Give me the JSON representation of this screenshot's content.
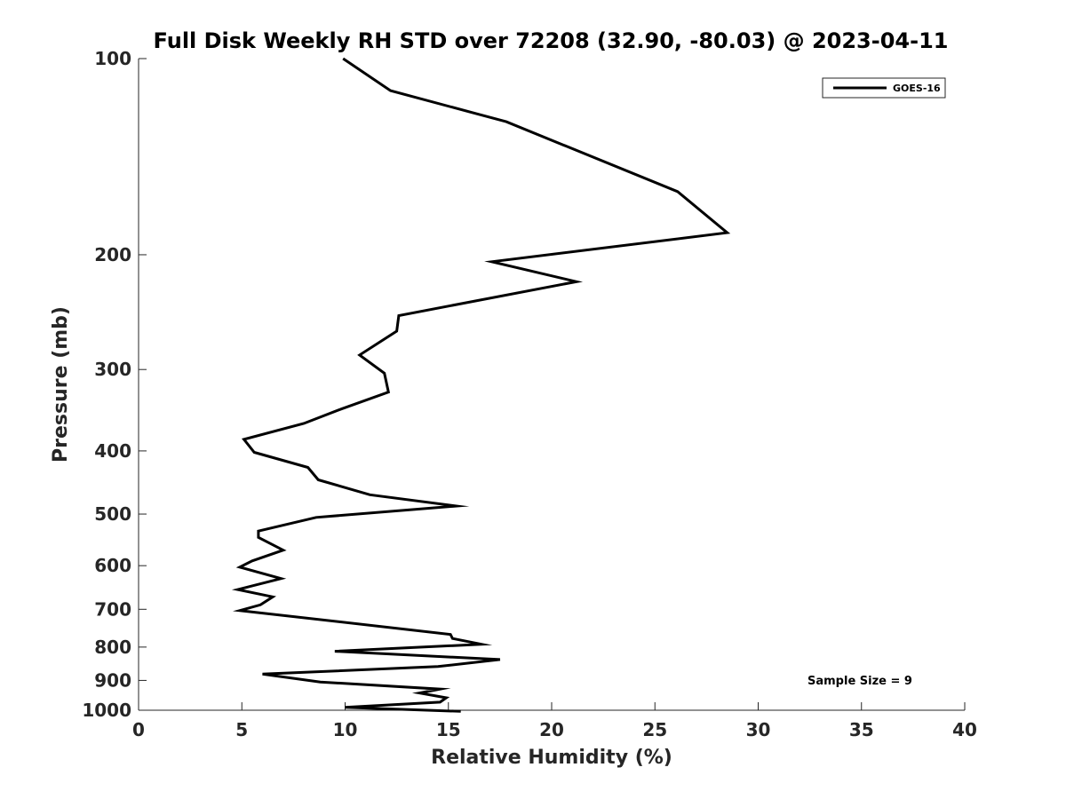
{
  "chart_data": {
    "type": "line",
    "title": "Full Disk Weekly RH STD over 72208 (32.90, -80.03) @ 2023-04-11",
    "xlabel": "Relative Humidity (%)",
    "ylabel": "Pressure (mb)",
    "xlim": [
      0,
      40
    ],
    "ylim": [
      100,
      1000
    ],
    "y_scale": "log",
    "y_reversed": true,
    "xticks": [
      0,
      5,
      10,
      15,
      20,
      25,
      30,
      35,
      40
    ],
    "yticks": [
      100,
      200,
      300,
      400,
      500,
      600,
      700,
      800,
      900,
      1000
    ],
    "legend_position": "top-right",
    "grid": false,
    "series": [
      {
        "name": "GOES-16",
        "color": "#000000",
        "x": [
          9.9,
          12.2,
          17.8,
          26.1,
          28.5,
          17.1,
          21.2,
          12.6,
          12.5,
          10.7,
          11.9,
          12.1,
          9.8,
          8.0,
          5.1,
          5.6,
          8.2,
          8.7,
          11.2,
          15.4,
          8.6,
          5.8,
          5.8,
          7.0,
          5.5,
          4.9,
          6.9,
          4.8,
          6.5,
          5.9,
          4.9,
          15.1,
          15.2,
          16.6,
          9.5,
          17.5,
          14.5,
          6.0,
          8.8,
          14.6,
          13.6,
          14.9,
          14.6,
          10.0,
          15.6
        ],
        "y": [
          100,
          112,
          125,
          160,
          185,
          205,
          220,
          248,
          262,
          285,
          304,
          325,
          345,
          363,
          384,
          402,
          424,
          443,
          467,
          486,
          506,
          531,
          543,
          568,
          590,
          603,
          628,
          653,
          670,
          689,
          703,
          765,
          776,
          792,
          812,
          836,
          857,
          880,
          905,
          928,
          941,
          957,
          972,
          990,
          1004
        ]
      }
    ],
    "annotations": [
      "Sample Size = 9"
    ]
  }
}
